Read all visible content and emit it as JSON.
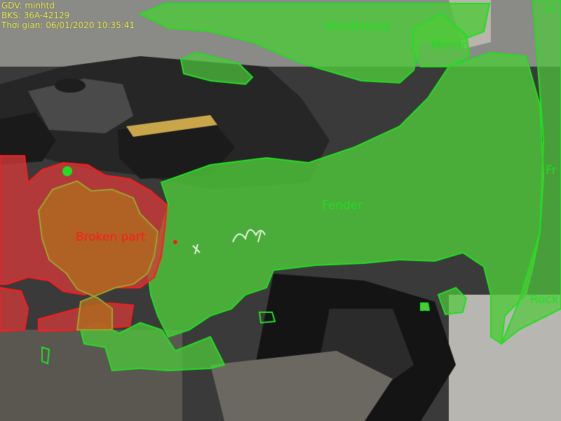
{
  "overlay_header": {
    "inspector": "GDV: minhtd",
    "plate": "BKS: 36A-42129",
    "timestamp": "Thời gian: 06/01/2020 10:35:41"
  },
  "labels": {
    "windshield": "Windshield",
    "mirror_partial": "Mirror",
    "fender": "Fender",
    "broken_part": "Broken part",
    "front_door_partial": "Fr",
    "front_door_top_partial": "Fr",
    "rocker_partial": "Rock"
  },
  "colors": {
    "part_outline": "#22dd22",
    "part_fill": "#4fc93a",
    "damage_outline": "#ff1a1a",
    "damage_fill": "#d43a3a",
    "overlap_outline": "#9aa62a",
    "overlap_fill": "#b06a22",
    "stamp_text": "#ffff66"
  }
}
